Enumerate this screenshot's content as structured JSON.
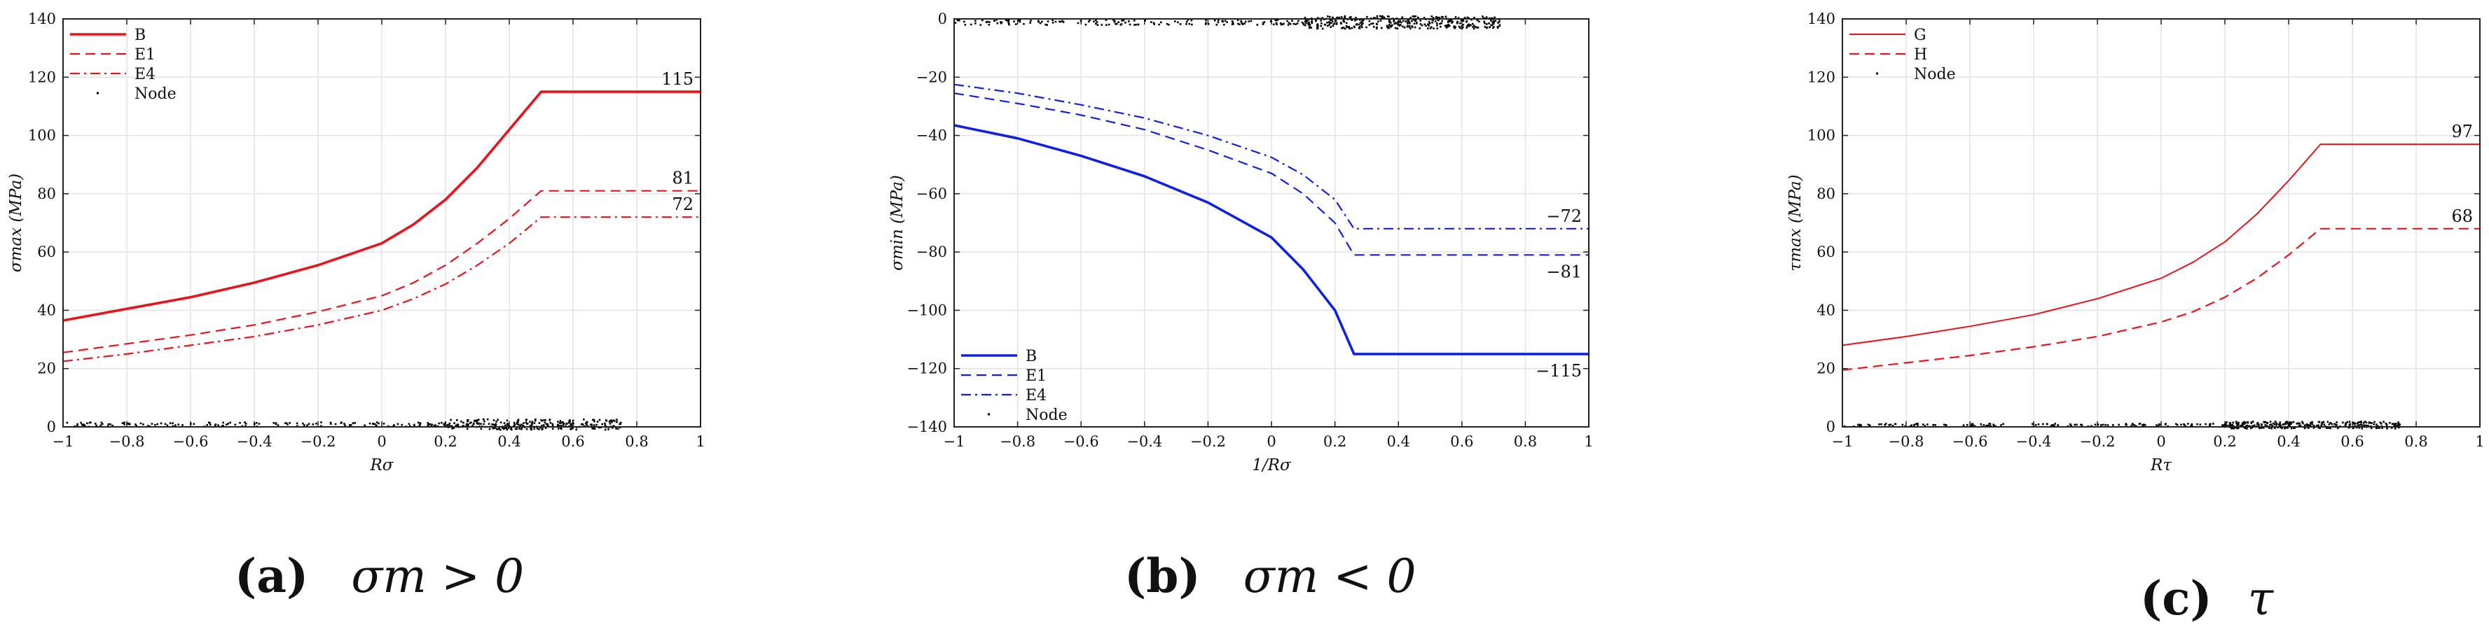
{
  "chart_data": [
    {
      "type": "line",
      "panel_label": "(a)",
      "caption": "σm > 0",
      "xlabel": "Rσ",
      "ylabel": "σmax (MPa)",
      "xlim": [
        -1,
        1
      ],
      "ylim": [
        0,
        140
      ],
      "xticks": [
        -1,
        -0.8,
        -0.6,
        -0.4,
        -0.2,
        0,
        0.2,
        0.4,
        0.6,
        0.8,
        1
      ],
      "yticks": [
        0,
        20,
        40,
        60,
        80,
        100,
        120,
        140
      ],
      "xtick_labels": [
        "−1",
        "−0.8",
        "−0.6",
        "−0.4",
        "−0.2",
        "0",
        "0.2",
        "0.4",
        "0.6",
        "0.8",
        "1"
      ],
      "ytick_labels": [
        "0",
        "20",
        "40",
        "60",
        "80",
        "100",
        "120",
        "140"
      ],
      "grid": true,
      "legend_position": "top-left",
      "color": "#e8141c",
      "series": [
        {
          "name": "B",
          "style": "solid",
          "width": 3.6,
          "points": [
            [
              -1,
              36.5
            ],
            [
              -0.8,
              40.5
            ],
            [
              -0.6,
              44.5
            ],
            [
              -0.4,
              49.5
            ],
            [
              -0.2,
              55.5
            ],
            [
              0,
              63
            ],
            [
              0.1,
              69.5
            ],
            [
              0.2,
              78
            ],
            [
              0.3,
              89
            ],
            [
              0.4,
              102
            ],
            [
              0.5,
              115
            ],
            [
              1,
              115
            ]
          ],
          "end_label": "115"
        },
        {
          "name": "E1",
          "style": "dash",
          "width": 2.2,
          "points": [
            [
              -1,
              25.5
            ],
            [
              -0.8,
              28.5
            ],
            [
              -0.6,
              31.5
            ],
            [
              -0.4,
              35
            ],
            [
              -0.2,
              39.5
            ],
            [
              0,
              45
            ],
            [
              0.1,
              49.5
            ],
            [
              0.2,
              55.5
            ],
            [
              0.3,
              63
            ],
            [
              0.4,
              71.5
            ],
            [
              0.5,
              81
            ],
            [
              1,
              81
            ]
          ],
          "end_label": "81"
        },
        {
          "name": "E4",
          "style": "dashdot",
          "width": 2.2,
          "points": [
            [
              -1,
              22.5
            ],
            [
              -0.8,
              25
            ],
            [
              -0.6,
              28
            ],
            [
              -0.4,
              31
            ],
            [
              -0.2,
              35
            ],
            [
              0,
              40
            ],
            [
              0.1,
              44
            ],
            [
              0.2,
              49
            ],
            [
              0.3,
              55.5
            ],
            [
              0.4,
              63
            ],
            [
              0.5,
              72
            ],
            [
              1,
              72
            ]
          ],
          "end_label": "72"
        }
      ],
      "node_series": {
        "name": "Node",
        "band_y": 0.8,
        "jitter": 1.5,
        "x_min": -1,
        "x_max": 0.75,
        "count": 420,
        "dense_from": 0.2
      }
    },
    {
      "type": "line",
      "panel_label": "(b)",
      "caption": "σm < 0",
      "xlabel": "1/Rσ",
      "ylabel": "σmin (MPa)",
      "xlim": [
        -1,
        1
      ],
      "ylim": [
        -140,
        0
      ],
      "xticks": [
        -1,
        -0.8,
        -0.6,
        -0.4,
        -0.2,
        0,
        0.2,
        0.4,
        0.6,
        0.8,
        1
      ],
      "yticks": [
        -140,
        -120,
        -100,
        -80,
        -60,
        -40,
        -20,
        0
      ],
      "xtick_labels": [
        "−1",
        "−0.8",
        "−0.6",
        "−0.4",
        "−0.2",
        "0",
        "0.2",
        "0.4",
        "0.6",
        "0.8",
        "1"
      ],
      "ytick_labels": [
        "−140",
        "−120",
        "−100",
        "−80",
        "−60",
        "−40",
        "−20",
        "0"
      ],
      "grid": true,
      "legend_position": "bottom-left",
      "color": "#1020e0",
      "series": [
        {
          "name": "B",
          "style": "solid",
          "width": 3.6,
          "points": [
            [
              -1,
              -36.5
            ],
            [
              -0.8,
              -41
            ],
            [
              -0.6,
              -47
            ],
            [
              -0.4,
              -54
            ],
            [
              -0.2,
              -63
            ],
            [
              0,
              -75
            ],
            [
              0.1,
              -86
            ],
            [
              0.2,
              -100
            ],
            [
              0.26,
              -115
            ],
            [
              1,
              -115
            ]
          ],
          "end_label": "−115"
        },
        {
          "name": "E1",
          "style": "dash",
          "width": 2.2,
          "points": [
            [
              -1,
              -25.5
            ],
            [
              -0.8,
              -29
            ],
            [
              -0.6,
              -33
            ],
            [
              -0.4,
              -38
            ],
            [
              -0.2,
              -45
            ],
            [
              0,
              -53
            ],
            [
              0.1,
              -60
            ],
            [
              0.2,
              -70
            ],
            [
              0.26,
              -81
            ],
            [
              1,
              -81
            ]
          ],
          "end_label": "−81"
        },
        {
          "name": "E4",
          "style": "dashdot",
          "width": 2.2,
          "points": [
            [
              -1,
              -22.5
            ],
            [
              -0.8,
              -25.5
            ],
            [
              -0.6,
              -29.5
            ],
            [
              -0.4,
              -34
            ],
            [
              -0.2,
              -40
            ],
            [
              0,
              -47.5
            ],
            [
              0.1,
              -53.5
            ],
            [
              0.2,
              -62
            ],
            [
              0.26,
              -72
            ],
            [
              1,
              -72
            ]
          ],
          "end_label": "−72"
        }
      ],
      "node_series": {
        "name": "Node",
        "band_y": -1.2,
        "jitter": 1.8,
        "x_min": -1,
        "x_max": 0.72,
        "count": 520,
        "dense_from": 0.1
      }
    },
    {
      "type": "line",
      "panel_label": "(c)",
      "caption": "τ",
      "xlabel": "Rτ",
      "ylabel": "τmax (MPa)",
      "xlim": [
        -1,
        1
      ],
      "ylim": [
        0,
        140
      ],
      "xticks": [
        -1,
        -0.8,
        -0.6,
        -0.4,
        -0.2,
        0,
        0.2,
        0.4,
        0.6,
        0.8,
        1
      ],
      "yticks": [
        0,
        20,
        40,
        60,
        80,
        100,
        120,
        140
      ],
      "xtick_labels": [
        "−1",
        "−0.8",
        "−0.6",
        "−0.4",
        "−0.2",
        "0",
        "0.2",
        "0.4",
        "0.6",
        "0.8",
        "1"
      ],
      "ytick_labels": [
        "0",
        "20",
        "40",
        "60",
        "80",
        "100",
        "120",
        "140"
      ],
      "grid": true,
      "legend_position": "top-left",
      "color": "#e8141c",
      "series": [
        {
          "name": "G",
          "style": "solid",
          "width": 2.0,
          "points": [
            [
              -1,
              28
            ],
            [
              -0.8,
              31
            ],
            [
              -0.6,
              34.5
            ],
            [
              -0.4,
              38.5
            ],
            [
              -0.2,
              44
            ],
            [
              0,
              51
            ],
            [
              0.1,
              56.5
            ],
            [
              0.2,
              63.5
            ],
            [
              0.3,
              73
            ],
            [
              0.4,
              84.5
            ],
            [
              0.5,
              97
            ],
            [
              1,
              97
            ]
          ],
          "end_label": "97"
        },
        {
          "name": "H",
          "style": "dash",
          "width": 2.2,
          "points": [
            [
              -1,
              19.5
            ],
            [
              -0.8,
              22
            ],
            [
              -0.6,
              24.5
            ],
            [
              -0.4,
              27.5
            ],
            [
              -0.2,
              31
            ],
            [
              0,
              36
            ],
            [
              0.1,
              39.5
            ],
            [
              0.2,
              44.5
            ],
            [
              0.3,
              51
            ],
            [
              0.4,
              59
            ],
            [
              0.5,
              68
            ],
            [
              1,
              68
            ]
          ],
          "end_label": "68"
        }
      ],
      "node_series": {
        "name": "Node",
        "band_y": 0.6,
        "jitter": 1.0,
        "x_min": -1,
        "x_max": 0.75,
        "count": 420,
        "dense_from": 0.2
      }
    }
  ]
}
